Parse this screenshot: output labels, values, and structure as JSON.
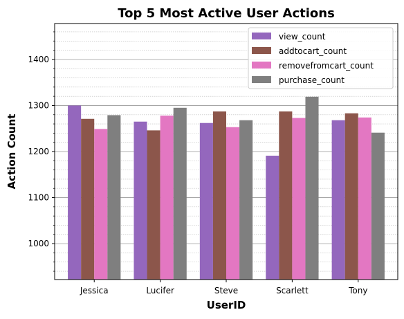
{
  "chart_data": {
    "type": "bar",
    "title": "Top 5 Most Active User Actions",
    "xlabel": "UserID",
    "ylabel": "Action Count",
    "categories": [
      "Jessica",
      "Lucifer",
      "Steve",
      "Scarlett",
      "Tony"
    ],
    "ylim": [
      922,
      1478
    ],
    "yticks": [
      1000,
      1100,
      1200,
      1300,
      1400
    ],
    "minor_step": 20,
    "grid": true,
    "legend_position": "top-right",
    "series": [
      {
        "name": "view_count",
        "color": "#9467bd",
        "values": [
          1300,
          1265,
          1262,
          1191,
          1268
        ]
      },
      {
        "name": "addtocart_count",
        "color": "#8c564b",
        "values": [
          1271,
          1246,
          1287,
          1287,
          1283
        ]
      },
      {
        "name": "removefromcart_count",
        "color": "#e377c2",
        "values": [
          1249,
          1278,
          1253,
          1273,
          1274
        ]
      },
      {
        "name": "purchase_count",
        "color": "#7f7f7f",
        "values": [
          1279,
          1295,
          1268,
          1319,
          1241
        ]
      }
    ]
  }
}
